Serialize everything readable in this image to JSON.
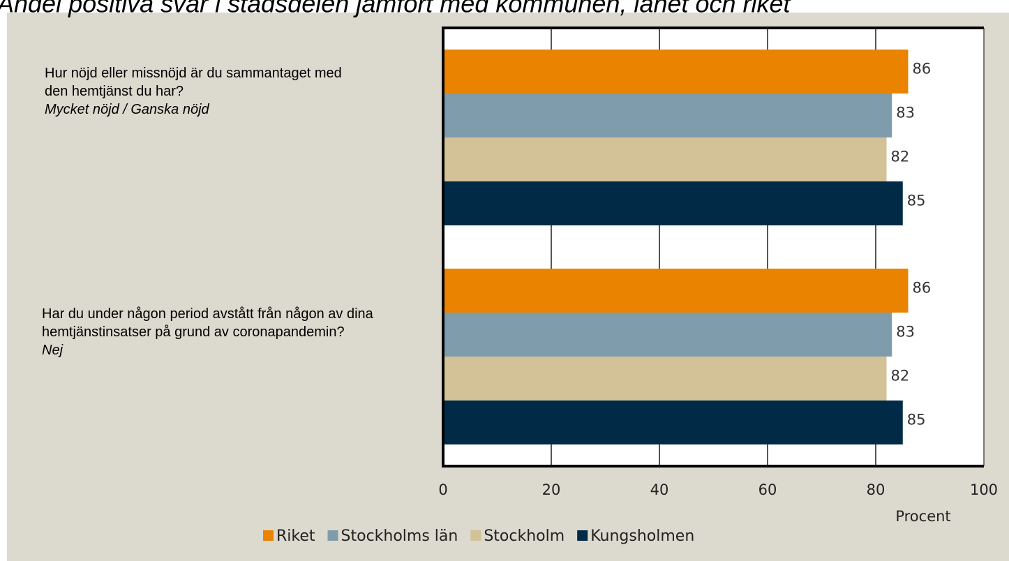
{
  "chart_data": {
    "type": "bar",
    "orientation": "horizontal",
    "title": "Andel positiva svar i stadsdelen jämfört med kommunen, länet och riket",
    "categories": [
      "Hur nöjd eller missnöjd är du sammantaget med den hemtjänst du har?",
      "Har du under någon period avstått från någon av dina hemtjänstinsatser på grund av coronapandemin?"
    ],
    "category_notes": [
      "Mycket nöjd / Ganska nöjd",
      "Nej"
    ],
    "series": [
      {
        "name": "Riket",
        "color": "#e98300",
        "values": [
          86,
          86
        ]
      },
      {
        "name": "Stockholms län",
        "color": "#7f9cad",
        "values": [
          83,
          83
        ]
      },
      {
        "name": "Stockholm",
        "color": "#d3c197",
        "values": [
          82,
          82
        ]
      },
      {
        "name": "Kungsholmen",
        "color": "#002a45",
        "values": [
          85,
          85
        ]
      }
    ],
    "xlim": [
      0,
      100
    ],
    "xticks": [
      0,
      20,
      40,
      60,
      80,
      100
    ],
    "grid": true,
    "xlabel": "Procent",
    "legend": "bottom"
  }
}
